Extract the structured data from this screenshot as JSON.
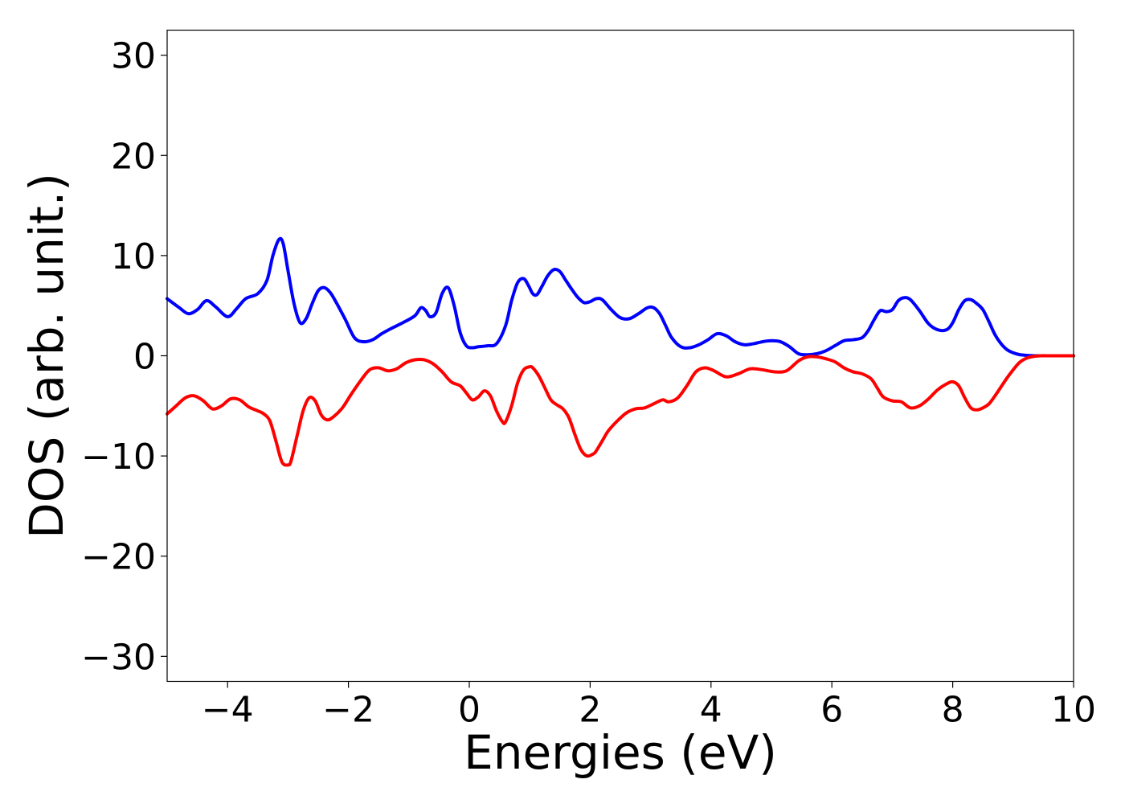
{
  "chart_data": {
    "type": "line",
    "title": "",
    "xlabel": "Energies (eV)",
    "ylabel": "DOS (arb. unit.)",
    "xlim": [
      -5,
      10
    ],
    "ylim": [
      -32.5,
      32.5
    ],
    "xticks": [
      -4,
      -2,
      0,
      2,
      4,
      6,
      8,
      10
    ],
    "xtick_labels": [
      "−4",
      "−2",
      "0",
      "2",
      "4",
      "6",
      "8",
      "10"
    ],
    "yticks": [
      -30,
      -20,
      -10,
      0,
      10,
      20,
      30
    ],
    "ytick_labels": [
      "−30",
      "−20",
      "−10",
      "0",
      "10",
      "20",
      "30"
    ],
    "grid": false,
    "series": [
      {
        "color": "#0000ff",
        "x": [
          -5.0,
          -4.8,
          -4.65,
          -4.5,
          -4.35,
          -4.2,
          -4.0,
          -3.85,
          -3.7,
          -3.5,
          -3.35,
          -3.25,
          -3.15,
          -3.08,
          -3.0,
          -2.9,
          -2.8,
          -2.7,
          -2.6,
          -2.5,
          -2.4,
          -2.3,
          -2.2,
          -2.05,
          -1.9,
          -1.75,
          -1.6,
          -1.45,
          -1.3,
          -1.1,
          -0.9,
          -0.8,
          -0.72,
          -0.65,
          -0.55,
          -0.45,
          -0.35,
          -0.25,
          -0.15,
          -0.05,
          0.05,
          0.15,
          0.3,
          0.45,
          0.6,
          0.7,
          0.8,
          0.9,
          0.98,
          1.05,
          1.12,
          1.2,
          1.3,
          1.4,
          1.5,
          1.6,
          1.7,
          1.8,
          1.9,
          2.0,
          2.1,
          2.2,
          2.35,
          2.5,
          2.65,
          2.8,
          2.95,
          3.05,
          3.15,
          3.25,
          3.35,
          3.5,
          3.65,
          3.8,
          3.95,
          4.1,
          4.25,
          4.4,
          4.55,
          4.7,
          4.85,
          5.0,
          5.15,
          5.3,
          5.45,
          5.6,
          5.75,
          5.9,
          6.05,
          6.2,
          6.35,
          6.5,
          6.6,
          6.7,
          6.8,
          6.9,
          7.0,
          7.1,
          7.2,
          7.3,
          7.45,
          7.6,
          7.75,
          7.9,
          8.0,
          8.1,
          8.2,
          8.3,
          8.4,
          8.5,
          8.6,
          8.7,
          8.8,
          8.9,
          9.0,
          9.1,
          9.2,
          9.35,
          9.5,
          9.7,
          10.0
        ],
        "y": [
          5.7,
          4.8,
          4.2,
          4.6,
          5.5,
          4.9,
          3.9,
          4.7,
          5.7,
          6.2,
          7.5,
          10.0,
          11.6,
          11.2,
          8.5,
          5.2,
          3.3,
          3.7,
          5.2,
          6.5,
          6.8,
          6.3,
          5.3,
          3.6,
          1.8,
          1.4,
          1.6,
          2.2,
          2.7,
          3.3,
          4.0,
          4.8,
          4.5,
          3.9,
          4.3,
          6.2,
          6.8,
          5.0,
          2.3,
          1.0,
          0.8,
          0.9,
          1.0,
          1.2,
          3.0,
          5.5,
          7.3,
          7.7,
          7.0,
          6.2,
          6.1,
          6.9,
          8.0,
          8.6,
          8.4,
          7.5,
          6.6,
          5.8,
          5.3,
          5.4,
          5.7,
          5.6,
          4.6,
          3.8,
          3.7,
          4.2,
          4.8,
          4.8,
          4.2,
          3.0,
          1.8,
          0.9,
          0.8,
          1.1,
          1.6,
          2.2,
          2.0,
          1.4,
          1.1,
          1.2,
          1.4,
          1.5,
          1.4,
          0.9,
          0.2,
          0.1,
          0.2,
          0.5,
          1.0,
          1.5,
          1.6,
          1.8,
          2.5,
          3.6,
          4.5,
          4.4,
          4.6,
          5.5,
          5.8,
          5.6,
          4.5,
          3.2,
          2.6,
          2.6,
          3.3,
          4.6,
          5.5,
          5.6,
          5.2,
          4.6,
          3.4,
          2.1,
          1.2,
          0.6,
          0.3,
          0.12,
          0.05,
          0.0,
          0.0,
          0.0,
          0.0
        ]
      },
      {
        "color": "#ff0000",
        "x": [
          -5.0,
          -4.85,
          -4.7,
          -4.55,
          -4.4,
          -4.25,
          -4.1,
          -3.95,
          -3.8,
          -3.65,
          -3.5,
          -3.4,
          -3.3,
          -3.2,
          -3.1,
          -3.0,
          -2.95,
          -2.85,
          -2.75,
          -2.65,
          -2.55,
          -2.45,
          -2.35,
          -2.25,
          -2.1,
          -1.95,
          -1.8,
          -1.65,
          -1.5,
          -1.35,
          -1.2,
          -1.05,
          -0.9,
          -0.75,
          -0.6,
          -0.45,
          -0.3,
          -0.15,
          -0.05,
          0.05,
          0.15,
          0.25,
          0.35,
          0.45,
          0.55,
          0.6,
          0.7,
          0.8,
          0.9,
          1.0,
          1.05,
          1.15,
          1.25,
          1.35,
          1.45,
          1.55,
          1.65,
          1.75,
          1.85,
          1.95,
          2.05,
          2.1,
          2.2,
          2.3,
          2.45,
          2.6,
          2.75,
          2.9,
          3.05,
          3.2,
          3.3,
          3.45,
          3.6,
          3.75,
          3.9,
          4.05,
          4.25,
          4.45,
          4.65,
          4.85,
          5.05,
          5.25,
          5.45,
          5.6,
          5.75,
          5.9,
          6.05,
          6.2,
          6.35,
          6.5,
          6.65,
          6.75,
          6.85,
          7.0,
          7.15,
          7.3,
          7.45,
          7.6,
          7.75,
          7.9,
          8.0,
          8.1,
          8.2,
          8.3,
          8.4,
          8.5,
          8.6,
          8.7,
          8.8,
          8.9,
          9.0,
          9.1,
          9.2,
          9.3,
          9.45,
          9.6,
          9.8,
          10.0
        ],
        "y": [
          -5.8,
          -5.0,
          -4.2,
          -4.0,
          -4.5,
          -5.3,
          -5.0,
          -4.3,
          -4.4,
          -5.1,
          -5.5,
          -5.8,
          -6.5,
          -8.5,
          -10.6,
          -10.9,
          -10.5,
          -8.0,
          -5.5,
          -4.2,
          -4.5,
          -5.9,
          -6.4,
          -6.1,
          -5.2,
          -3.8,
          -2.5,
          -1.4,
          -1.2,
          -1.5,
          -1.3,
          -0.7,
          -0.4,
          -0.4,
          -0.8,
          -1.6,
          -2.6,
          -3.0,
          -3.7,
          -4.4,
          -4.1,
          -3.5,
          -4.0,
          -5.5,
          -6.6,
          -6.6,
          -5.0,
          -2.7,
          -1.4,
          -1.1,
          -1.2,
          -2.0,
          -3.2,
          -4.4,
          -4.9,
          -5.3,
          -6.2,
          -7.9,
          -9.4,
          -10.0,
          -9.8,
          -9.5,
          -8.5,
          -7.5,
          -6.5,
          -5.7,
          -5.3,
          -5.2,
          -4.8,
          -4.4,
          -4.6,
          -4.2,
          -3.0,
          -1.6,
          -1.2,
          -1.5,
          -2.1,
          -1.8,
          -1.3,
          -1.4,
          -1.6,
          -1.5,
          -0.5,
          -0.1,
          -0.1,
          -0.3,
          -0.6,
          -1.2,
          -1.6,
          -1.8,
          -2.3,
          -3.2,
          -4.1,
          -4.5,
          -4.6,
          -5.2,
          -5.0,
          -4.3,
          -3.4,
          -2.8,
          -2.6,
          -3.0,
          -4.2,
          -5.2,
          -5.4,
          -5.2,
          -4.8,
          -4.0,
          -3.1,
          -2.2,
          -1.4,
          -0.7,
          -0.3,
          -0.1,
          0.0,
          0.0,
          0.0,
          0.0
        ]
      }
    ]
  }
}
